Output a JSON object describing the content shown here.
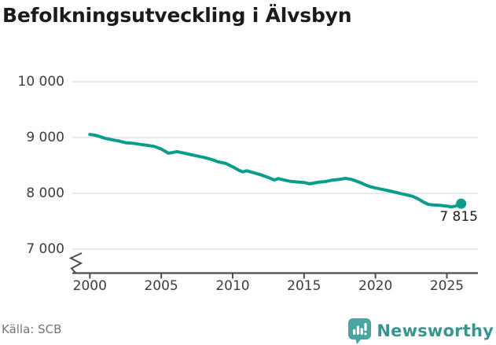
{
  "title": "Befolkningsutveckling i Älvsbyn",
  "footer": {
    "source": "Källa: SCB",
    "brand": "Newsworthy",
    "brand_icon": "bar-chart-speech-bubble-icon"
  },
  "colors": {
    "line": "#0b9d8c",
    "grid": "#e2e2e2",
    "axis": "#4d4d4d",
    "title_text": "#1b1b1b",
    "axis_text": "#3d3d3d",
    "muted_text": "#73737c",
    "brand_teal": "#3a948f",
    "brand_icon_teal": "#4aa5a0",
    "background": "#ffffff"
  },
  "chart_data": {
    "type": "line",
    "title": "Befolkningsutveckling i Älvsbyn",
    "xlabel": "",
    "ylabel": "",
    "grid": "horizontal",
    "legend": "none",
    "y_axis_break": true,
    "xlim": [
      2000,
      2026
    ],
    "ylim": [
      7000,
      10000
    ],
    "x_tick_years": [
      2000,
      2005,
      2010,
      2015,
      2020,
      2025
    ],
    "x_tick_labels": [
      "2000",
      "2005",
      "2010",
      "2015",
      "2020",
      "2025"
    ],
    "y_tick_values": [
      10000,
      9000,
      8000,
      7000
    ],
    "y_tick_labels": [
      "10 000",
      "9 000",
      "8 000",
      "7 000"
    ],
    "end_label": "7 815",
    "end_value": 7815,
    "series": [
      {
        "name": "Befolkningsutveckling i Älvsbyn",
        "points": [
          [
            2000.0,
            9055
          ],
          [
            2000.25,
            9047
          ],
          [
            2000.5,
            9034
          ],
          [
            2000.75,
            9012
          ],
          [
            2001.0,
            8990
          ],
          [
            2001.5,
            8962
          ],
          [
            2002.0,
            8940
          ],
          [
            2002.5,
            8907
          ],
          [
            2003.0,
            8899
          ],
          [
            2003.5,
            8877
          ],
          [
            2004.0,
            8860
          ],
          [
            2004.5,
            8841
          ],
          [
            2005.0,
            8794
          ],
          [
            2005.5,
            8720
          ],
          [
            2005.8,
            8731
          ],
          [
            2006.1,
            8748
          ],
          [
            2006.5,
            8727
          ],
          [
            2007.0,
            8697
          ],
          [
            2007.5,
            8671
          ],
          [
            2008.0,
            8644
          ],
          [
            2008.5,
            8608
          ],
          [
            2009.0,
            8563
          ],
          [
            2009.5,
            8538
          ],
          [
            2010.0,
            8474
          ],
          [
            2010.4,
            8419
          ],
          [
            2010.7,
            8385
          ],
          [
            2011.0,
            8404
          ],
          [
            2011.5,
            8368
          ],
          [
            2012.0,
            8329
          ],
          [
            2012.5,
            8283
          ],
          [
            2012.9,
            8240
          ],
          [
            2013.2,
            8264
          ],
          [
            2013.6,
            8238
          ],
          [
            2014.0,
            8217
          ],
          [
            2014.5,
            8204
          ],
          [
            2015.0,
            8194
          ],
          [
            2015.4,
            8171
          ],
          [
            2016.0,
            8199
          ],
          [
            2016.5,
            8211
          ],
          [
            2017.0,
            8238
          ],
          [
            2017.5,
            8251
          ],
          [
            2017.9,
            8267
          ],
          [
            2018.3,
            8251
          ],
          [
            2018.7,
            8216
          ],
          [
            2019.0,
            8186
          ],
          [
            2019.3,
            8151
          ],
          [
            2019.6,
            8121
          ],
          [
            2020.0,
            8096
          ],
          [
            2020.5,
            8069
          ],
          [
            2021.0,
            8042
          ],
          [
            2021.4,
            8019
          ],
          [
            2021.8,
            7995
          ],
          [
            2022.2,
            7971
          ],
          [
            2022.6,
            7947
          ],
          [
            2023.0,
            7898
          ],
          [
            2023.4,
            7838
          ],
          [
            2023.7,
            7803
          ],
          [
            2024.0,
            7791
          ],
          [
            2024.5,
            7784
          ],
          [
            2025.0,
            7772
          ],
          [
            2025.3,
            7757
          ],
          [
            2025.6,
            7770
          ],
          [
            2026.0,
            7815
          ]
        ]
      }
    ]
  }
}
